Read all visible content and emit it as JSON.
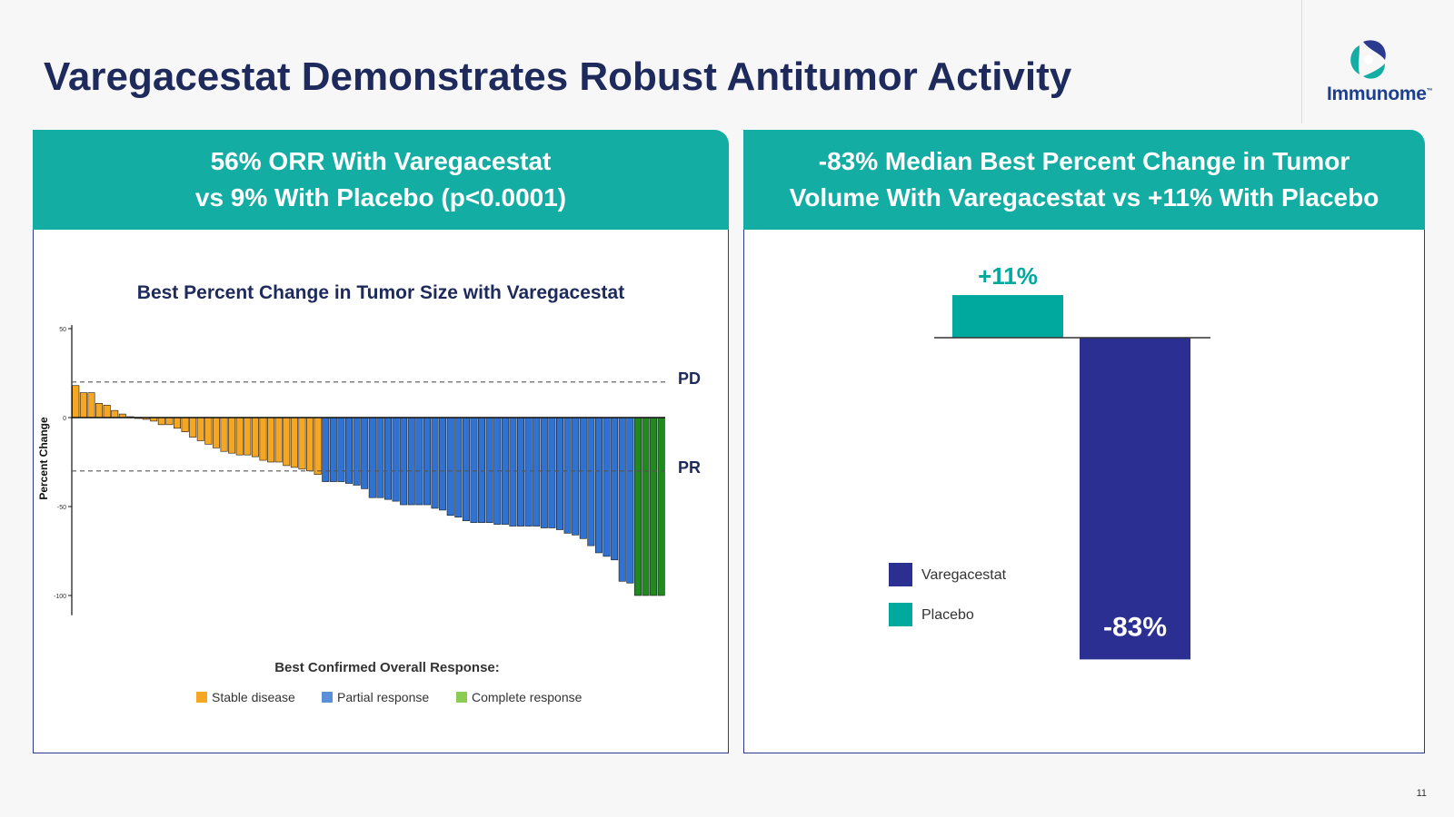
{
  "slide": {
    "title": "Varegacestat Demonstrates Robust Antitumor Activity",
    "page_number": "11",
    "logo_text": "Immunome",
    "logo_tm": "™"
  },
  "left_panel": {
    "header_line1": "56% ORR With Varegacestat",
    "header_line2": "vs 9% With Placebo (p<0.0001)"
  },
  "right_panel": {
    "header_line1": "-83% Median Best Percent Change in Tumor",
    "header_line2": "Volume With Varegacestat vs +11% With Placebo"
  },
  "colors": {
    "navy": "#1d2a5b",
    "teal": "#14ada3",
    "stable": "#f5a623",
    "partial": "#2f72d2",
    "complete": "#1f8a1f",
    "varegacestat": "#2b2f91",
    "placebo": "#00a99d"
  },
  "chart_data": [
    {
      "type": "bar",
      "title": "Best Percent Change in Tumor Size with Varegacestat",
      "ylabel": "Percent Change",
      "ylim": [
        -105,
        52
      ],
      "yticks": [
        50,
        0,
        -50,
        -100
      ],
      "reference_lines": [
        {
          "label": "PD",
          "value": 20
        },
        {
          "label": "PR",
          "value": -30
        }
      ],
      "legend_title": "Best Confirmed Overall Response:",
      "legend": [
        {
          "label": "Stable disease",
          "key": "SD"
        },
        {
          "label": "Partial response",
          "key": "PR"
        },
        {
          "label": "Complete response",
          "key": "CR"
        }
      ],
      "bars": [
        {
          "value": 18,
          "response": "SD"
        },
        {
          "value": 14,
          "response": "SD"
        },
        {
          "value": 14,
          "response": "SD"
        },
        {
          "value": 8,
          "response": "SD"
        },
        {
          "value": 7,
          "response": "SD"
        },
        {
          "value": 4,
          "response": "SD"
        },
        {
          "value": 2,
          "response": "SD"
        },
        {
          "value": 0.5,
          "response": "SD"
        },
        {
          "value": -0.5,
          "response": "SD"
        },
        {
          "value": -1,
          "response": "SD"
        },
        {
          "value": -2,
          "response": "SD"
        },
        {
          "value": -4,
          "response": "SD"
        },
        {
          "value": -4,
          "response": "SD"
        },
        {
          "value": -6,
          "response": "SD"
        },
        {
          "value": -8,
          "response": "SD"
        },
        {
          "value": -11,
          "response": "SD"
        },
        {
          "value": -13,
          "response": "SD"
        },
        {
          "value": -15,
          "response": "SD"
        },
        {
          "value": -17,
          "response": "SD"
        },
        {
          "value": -19,
          "response": "SD"
        },
        {
          "value": -20,
          "response": "SD"
        },
        {
          "value": -21,
          "response": "SD"
        },
        {
          "value": -21,
          "response": "SD"
        },
        {
          "value": -22,
          "response": "SD"
        },
        {
          "value": -24,
          "response": "SD"
        },
        {
          "value": -25,
          "response": "SD"
        },
        {
          "value": -25,
          "response": "SD"
        },
        {
          "value": -27,
          "response": "SD"
        },
        {
          "value": -28,
          "response": "SD"
        },
        {
          "value": -29,
          "response": "SD"
        },
        {
          "value": -30,
          "response": "SD"
        },
        {
          "value": -32,
          "response": "SD"
        },
        {
          "value": -36,
          "response": "PR"
        },
        {
          "value": -36,
          "response": "PR"
        },
        {
          "value": -36,
          "response": "PR"
        },
        {
          "value": -37,
          "response": "PR"
        },
        {
          "value": -38,
          "response": "PR"
        },
        {
          "value": -40,
          "response": "PR"
        },
        {
          "value": -45,
          "response": "PR"
        },
        {
          "value": -45,
          "response": "PR"
        },
        {
          "value": -46,
          "response": "PR"
        },
        {
          "value": -47,
          "response": "PR"
        },
        {
          "value": -49,
          "response": "PR"
        },
        {
          "value": -49,
          "response": "PR"
        },
        {
          "value": -49,
          "response": "PR"
        },
        {
          "value": -49,
          "response": "PR"
        },
        {
          "value": -51,
          "response": "PR"
        },
        {
          "value": -52,
          "response": "PR"
        },
        {
          "value": -55,
          "response": "PR"
        },
        {
          "value": -56,
          "response": "PR"
        },
        {
          "value": -58,
          "response": "PR"
        },
        {
          "value": -59,
          "response": "PR"
        },
        {
          "value": -59,
          "response": "PR"
        },
        {
          "value": -59,
          "response": "PR"
        },
        {
          "value": -60,
          "response": "PR"
        },
        {
          "value": -60,
          "response": "PR"
        },
        {
          "value": -61,
          "response": "PR"
        },
        {
          "value": -61,
          "response": "PR"
        },
        {
          "value": -61,
          "response": "PR"
        },
        {
          "value": -61,
          "response": "PR"
        },
        {
          "value": -62,
          "response": "PR"
        },
        {
          "value": -62,
          "response": "PR"
        },
        {
          "value": -63,
          "response": "PR"
        },
        {
          "value": -65,
          "response": "PR"
        },
        {
          "value": -66,
          "response": "PR"
        },
        {
          "value": -68,
          "response": "PR"
        },
        {
          "value": -72,
          "response": "PR"
        },
        {
          "value": -76,
          "response": "PR"
        },
        {
          "value": -78,
          "response": "PR"
        },
        {
          "value": -80,
          "response": "PR"
        },
        {
          "value": -92,
          "response": "PR"
        },
        {
          "value": -93,
          "response": "PR"
        },
        {
          "value": -100,
          "response": "CR"
        },
        {
          "value": -100,
          "response": "CR"
        },
        {
          "value": -100,
          "response": "CR"
        },
        {
          "value": -100,
          "response": "CR"
        }
      ]
    },
    {
      "type": "bar",
      "ylim": [
        -83,
        11
      ],
      "series": [
        {
          "name": "Placebo",
          "value": 11,
          "label": "+11%"
        },
        {
          "name": "Varegacestat",
          "value": -83,
          "label": "-83%"
        }
      ],
      "legend": [
        "Varegacestat",
        "Placebo"
      ]
    }
  ]
}
